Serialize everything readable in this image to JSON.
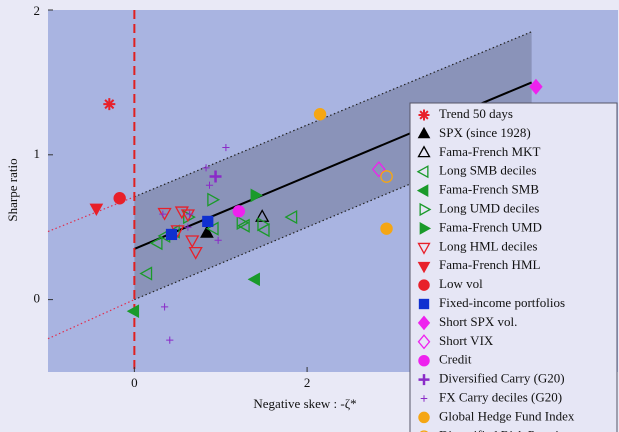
{
  "chart_data": {
    "type": "scatter",
    "xlabel": "Negative skew : -ζ*",
    "ylabel": "Sharpe ratio",
    "xlim": [
      -1,
      5.6
    ],
    "ylim": [
      -0.5,
      2
    ],
    "xticks": [
      0,
      2
    ],
    "yticks": [
      0,
      1,
      2
    ],
    "vline": 0,
    "legend": "right",
    "trend": {
      "x": [
        0,
        4.6
      ],
      "values": [
        0.35,
        1.5
      ]
    },
    "band_upper": {
      "x": [
        -1,
        0,
        4.6
      ],
      "values": [
        0.47,
        0.71,
        1.85
      ]
    },
    "band_lower": {
      "x": [
        -1,
        0,
        4.6
      ],
      "values": [
        -0.27,
        0.0,
        1.15
      ]
    },
    "series": [
      {
        "name": "Trend 50 days",
        "color": "#e8202a",
        "marker": "asterisk",
        "x": [
          -0.29
        ],
        "values": [
          1.35
        ]
      },
      {
        "name": "SPX (since 1928)",
        "color": "#000000",
        "marker": "triangle-up",
        "x": [
          0.84
        ],
        "values": [
          0.46
        ]
      },
      {
        "name": "Fama-French MKT",
        "color": "#000000",
        "marker": "triangle-up-open",
        "x": [
          1.48
        ],
        "values": [
          0.57
        ]
      },
      {
        "name": "Long SMB deciles",
        "color": "#1a9a2a",
        "marker": "triangle-left-open",
        "x": [
          0.15,
          0.27,
          0.36,
          0.47,
          0.92,
          1.28,
          1.51,
          1.83
        ],
        "values": [
          0.18,
          0.39,
          0.44,
          0.47,
          0.49,
          0.51,
          0.48,
          0.57
        ]
      },
      {
        "name": "Fama-French SMB",
        "color": "#1a9a2a",
        "marker": "triangle-left",
        "x": [
          1.4,
          0
        ],
        "values": [
          0.14,
          -0.08
        ]
      },
      {
        "name": "Long UMD deciles",
        "color": "#1a9a2a",
        "marker": "triangle-right-open",
        "x": [
          0.9,
          0.62,
          1.24,
          1.48
        ],
        "values": [
          0.69,
          0.57,
          0.53,
          0.52
        ]
      },
      {
        "name": "Fama-French UMD",
        "color": "#1a9a2a",
        "marker": "triangle-right",
        "x": [
          1.4
        ],
        "values": [
          0.72
        ]
      },
      {
        "name": "Long HML deciles",
        "color": "#e8202a",
        "marker": "triangle-down-open",
        "x": [
          0.35,
          0.55,
          0.67,
          0.71,
          0.62,
          0.5
        ],
        "values": [
          0.6,
          0.61,
          0.41,
          0.33,
          0.59,
          0.48
        ]
      },
      {
        "name": "Fama-French HML",
        "color": "#e8202a",
        "marker": "triangle-down",
        "x": [
          -0.44
        ],
        "values": [
          0.63
        ]
      },
      {
        "name": "Low vol",
        "color": "#e8202a",
        "marker": "circle",
        "x": [
          -0.17
        ],
        "values": [
          0.7
        ]
      },
      {
        "name": "Fixed-income portfolios",
        "color": "#1030d0",
        "marker": "square",
        "x": [
          0.43,
          0.85
        ],
        "values": [
          0.45,
          0.54
        ]
      },
      {
        "name": "Short SPX vol.",
        "color": "#ee22ee",
        "marker": "diamond",
        "x": [
          4.65
        ],
        "values": [
          1.47
        ]
      },
      {
        "name": "Short VIX",
        "color": "#ee22ee",
        "marker": "diamond-open",
        "x": [
          2.83
        ],
        "values": [
          0.9
        ]
      },
      {
        "name": "Credit",
        "color": "#ee22ee",
        "marker": "circle",
        "x": [
          1.21
        ],
        "values": [
          0.61
        ]
      },
      {
        "name": "Diversified Carry (G20)",
        "color": "#8a2bc8",
        "marker": "plus",
        "x": [
          0.94
        ],
        "values": [
          0.85
        ]
      },
      {
        "name": "FX Carry deciles (G20)",
        "color": "#8a2bc8",
        "marker": "plus-small",
        "x": [
          1.06,
          0.83,
          0.87,
          0.64,
          0.33,
          0.97,
          0.35,
          0.41,
          0.62
        ],
        "values": [
          1.05,
          0.91,
          0.79,
          0.59,
          0.59,
          0.41,
          -0.05,
          -0.28,
          0.5
        ]
      },
      {
        "name": "Global Hedge Fund Index",
        "color": "#f5a614",
        "marker": "circle",
        "x": [
          2.15,
          2.92
        ],
        "values": [
          1.28,
          0.49
        ]
      },
      {
        "name": "Diversified Risk Premia",
        "color": "#f5a614",
        "marker": "circle-open",
        "x": [
          2.92
        ],
        "values": [
          0.85
        ]
      }
    ]
  }
}
